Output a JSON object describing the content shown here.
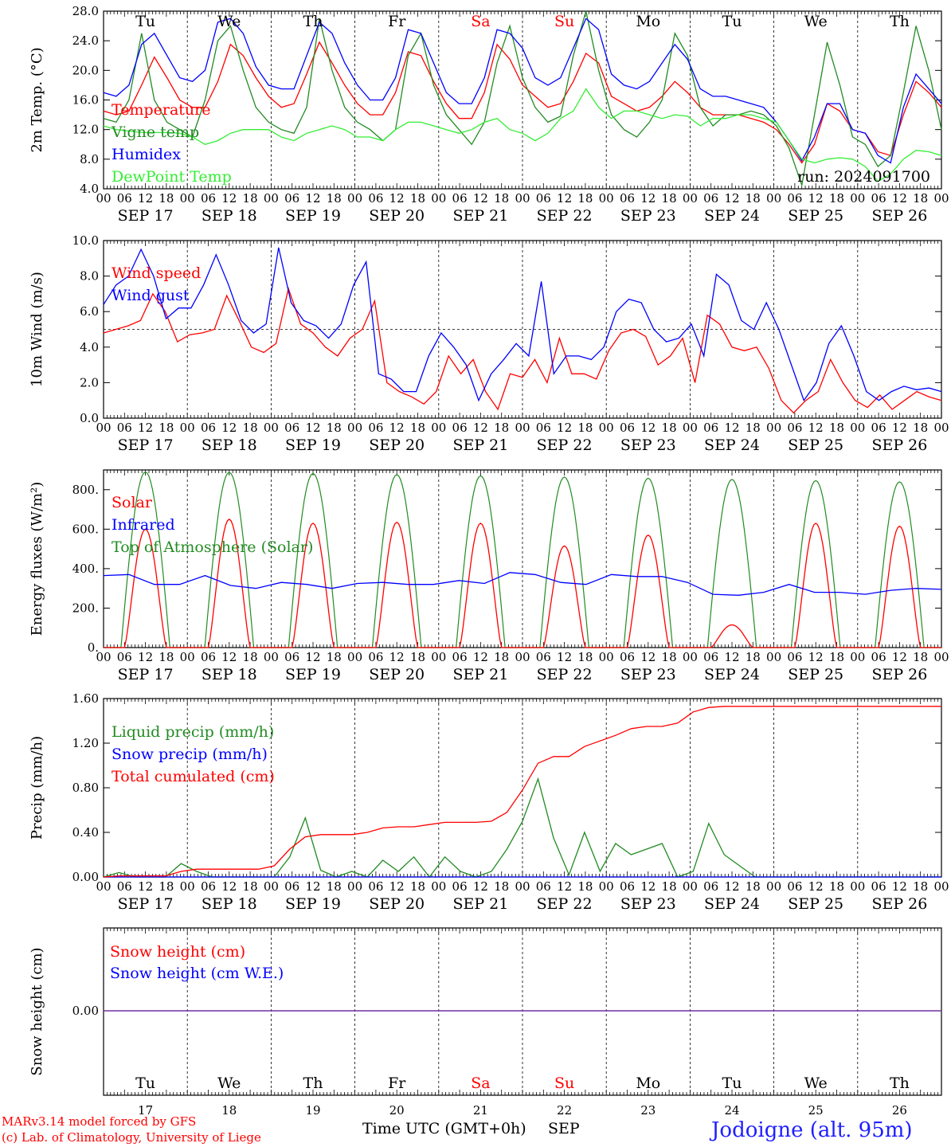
{
  "days": [
    "Tu",
    "We",
    "Th",
    "Fr",
    "Sa",
    "Su",
    "Mo",
    "Tu",
    "We",
    "Th"
  ],
  "day_colors": [
    "#000000",
    "#000000",
    "#000000",
    "#000000",
    "#ff0000",
    "#ff0000",
    "#000000",
    "#000000",
    "#000000",
    "#000000"
  ],
  "dates": [
    "SEP 17",
    "SEP 18",
    "SEP 19",
    "SEP 20",
    "SEP 21",
    "SEP 22",
    "SEP 23",
    "SEP 24",
    "SEP 25",
    "SEP 26"
  ],
  "day_numbers": [
    "17",
    "18",
    "19",
    "20",
    "21",
    "22",
    "23",
    "24",
    "25",
    "26"
  ],
  "hour_ticks": [
    "00",
    "06",
    "12",
    "18"
  ],
  "run": "run: 2024091700",
  "footer": {
    "model": "MARv3.14 model forced by GFS",
    "lab": "(c) Lab. of Climatology, University of Liege",
    "axis": "Time UTC (GMT+0h)",
    "month": "SEP",
    "location": "Jodoigne (alt. 95m)"
  },
  "chart_data": [
    {
      "type": "line",
      "ylabel": "2m Temp. (°C)",
      "ylim": [
        4,
        28
      ],
      "yticks": [
        "4.0",
        "8.0",
        "12.0",
        "16.0",
        "20.0",
        "24.0",
        "28.0"
      ],
      "x_hours_step": 6,
      "series": [
        {
          "name": "Temperature",
          "color": "#ff0000",
          "values": [
            14.5,
            14,
            14.5,
            18,
            21.8,
            19,
            16,
            15,
            15,
            18.5,
            23.5,
            22,
            19,
            16.5,
            15,
            15.5,
            19.5,
            23.8,
            21,
            18,
            15.5,
            14,
            14,
            17,
            22.5,
            22,
            18.5,
            15.5,
            13.5,
            13.5,
            17,
            23.5,
            21.5,
            18,
            16.5,
            15,
            15.5,
            18.5,
            22.3,
            21,
            16.5,
            15.5,
            14.5,
            15,
            16.5,
            18.5,
            17,
            15,
            14,
            14,
            14,
            13.5,
            13,
            12,
            10,
            7.5,
            10,
            15.5,
            14.5,
            12,
            11.5,
            9,
            8.5,
            14,
            18.5,
            17,
            15
          ]
        },
        {
          "name": "Vigne temp",
          "color": "#228b22",
          "values": [
            13.5,
            13,
            16,
            25,
            16,
            13,
            12,
            11,
            16,
            24,
            26,
            20,
            15,
            13,
            12,
            11.5,
            15,
            27,
            20,
            15,
            13,
            12,
            10.5,
            12,
            22,
            25,
            18,
            14,
            12,
            10,
            13,
            21,
            26,
            19,
            15,
            13,
            13.8,
            22,
            28,
            20,
            14,
            12,
            11,
            13,
            16,
            25,
            22,
            15,
            12.5,
            14,
            14,
            14.5,
            14,
            12.5,
            9.5,
            4.5,
            14,
            23.8,
            18,
            11,
            10,
            7,
            8.5,
            17,
            26,
            20,
            12
          ]
        },
        {
          "name": "Humidex",
          "color": "#0000ff",
          "values": [
            17,
            16.5,
            18,
            23.5,
            25,
            22,
            19,
            18.5,
            20,
            26.5,
            27,
            25,
            20.5,
            18,
            17.5,
            17.5,
            22,
            26.5,
            25,
            21,
            18,
            16,
            16,
            19,
            25.5,
            25,
            21,
            17,
            15.5,
            15.5,
            19,
            25.5,
            25,
            23,
            19,
            18,
            19,
            23,
            27,
            25.5,
            19.5,
            18,
            17.5,
            18.5,
            21,
            23.5,
            21.5,
            17.5,
            16.5,
            16.5,
            16,
            15.5,
            15,
            13,
            10.5,
            7.8,
            11,
            15.5,
            15.5,
            12,
            11.5,
            8.5,
            7.5,
            15,
            19.5,
            17.5,
            15.5
          ]
        },
        {
          "name": "DewPoint Temp",
          "color": "#33ee33",
          "values": [
            12.5,
            12,
            11.8,
            11.6,
            11.6,
            11.6,
            11.5,
            11,
            10,
            10.5,
            11.5,
            12,
            12,
            12,
            11,
            10.5,
            11.5,
            12,
            12.5,
            12,
            11,
            11,
            10.5,
            12,
            13,
            13,
            12.5,
            12,
            11.5,
            12,
            13,
            13.5,
            12,
            11.5,
            10.5,
            11.5,
            13.5,
            14.5,
            17.5,
            15,
            13.5,
            14.5,
            14.5,
            14,
            13.5,
            14,
            13.8,
            12.5,
            13.5,
            13.5,
            14,
            14,
            13.5,
            13,
            10.5,
            8,
            7.5,
            8,
            8.2,
            8,
            7,
            5,
            6,
            8,
            9.2,
            9,
            8.5
          ]
        }
      ],
      "annotation": "run: 2024091700"
    },
    {
      "type": "line",
      "ylabel": "10m Wind (m/s)",
      "ylim": [
        0,
        10
      ],
      "yticks": [
        "0.0",
        "2.0",
        "4.0",
        "6.0",
        "8.0",
        "10.0"
      ],
      "reference_line": 5.0,
      "series": [
        {
          "name": "Wind speed",
          "color": "#ff0000",
          "values": [
            4.8,
            5,
            5.2,
            5.5,
            7,
            6,
            4.3,
            4.7,
            4.8,
            5,
            6.9,
            5.5,
            4,
            3.7,
            4.2,
            7.3,
            5.3,
            4.8,
            4,
            3.5,
            4.5,
            5,
            6.6,
            2,
            1.5,
            1.2,
            0.8,
            1.5,
            3.5,
            2.5,
            3.3,
            1.5,
            0.5,
            2.5,
            2.3,
            3.3,
            2,
            4.5,
            2.5,
            2.5,
            2.2,
            3.8,
            4.8,
            5,
            4.6,
            3,
            3.5,
            4.5,
            2,
            5.8,
            5.3,
            4,
            3.8,
            4,
            2.8,
            1,
            0.3,
            1,
            1.5,
            3.3,
            2,
            1,
            0.6,
            1.3,
            0.5,
            1,
            1.5,
            1.2,
            1
          ]
        },
        {
          "name": "Wind gust",
          "color": "#0000ff",
          "values": [
            6.4,
            7.5,
            8,
            9.5,
            8,
            5.6,
            6.2,
            6.2,
            7.5,
            9.2,
            7.5,
            5.5,
            4.8,
            5.3,
            9.6,
            6.5,
            5.5,
            5.2,
            4.5,
            5.3,
            7.5,
            8.8,
            2.5,
            2.2,
            1.5,
            1.5,
            3.5,
            4.8,
            4,
            3,
            1,
            2.5,
            3.3,
            4.2,
            3.5,
            7.7,
            2.5,
            3.5,
            3.5,
            3.3,
            4,
            6,
            6.7,
            6.5,
            5,
            4.3,
            4.5,
            5.3,
            3.5,
            8.1,
            7.5,
            5.5,
            5,
            6.5,
            5,
            3,
            1,
            2,
            4.2,
            5.2,
            3.5,
            1.5,
            1,
            1.5,
            1.8,
            1.6,
            1.7,
            1.5
          ]
        }
      ]
    },
    {
      "type": "line",
      "ylabel": "Energy fluxes (W/m²)",
      "ylim": [
        0,
        900
      ],
      "yticks": [
        "0.",
        "200.",
        "400.",
        "600.",
        "800."
      ],
      "series": [
        {
          "name": "Solar",
          "color": "#ff0000",
          "peaks": [
            600,
            650,
            630,
            635,
            630,
            515,
            570,
            115,
            630,
            615
          ]
        },
        {
          "name": "Infrared",
          "color": "#0000ff",
          "values": [
            365,
            370,
            320,
            320,
            365,
            315,
            300,
            330,
            320,
            300,
            325,
            330,
            320,
            320,
            340,
            325,
            380,
            370,
            330,
            320,
            370,
            360,
            360,
            330,
            270,
            265,
            280,
            320,
            280,
            280,
            270,
            290,
            300,
            295
          ]
        },
        {
          "name": "Top of Atmosphere (Solar)",
          "color": "#228b22",
          "peaks": [
            890,
            888,
            882,
            876,
            870,
            864,
            858,
            852,
            846,
            840
          ]
        }
      ]
    },
    {
      "type": "line",
      "ylabel": "Precip (mm/h)",
      "ylim": [
        0,
        1.6
      ],
      "yticks": [
        "0.00",
        "0.40",
        "0.80",
        "1.20",
        "1.60"
      ],
      "series": [
        {
          "name": "Liquid precip (mm/h)",
          "color": "#228b22",
          "values": [
            0,
            0.04,
            0,
            0,
            0,
            0.12,
            0.05,
            0,
            0,
            0,
            0,
            0,
            0.18,
            0.53,
            0.06,
            0,
            0.05,
            0,
            0.15,
            0.05,
            0.18,
            0,
            0.18,
            0.05,
            0,
            0.05,
            0.25,
            0.5,
            0.88,
            0.35,
            0.02,
            0.4,
            0.05,
            0.3,
            0.2,
            0.25,
            0.3,
            0,
            0.05,
            0.48,
            0.2,
            0.1,
            0,
            0,
            0,
            0,
            0,
            0,
            0,
            0,
            0,
            0,
            0,
            0,
            0
          ]
        },
        {
          "name": "Snow precip (mm/h)",
          "color": "#0000ff",
          "values": [
            0,
            0,
            0,
            0,
            0,
            0,
            0,
            0,
            0,
            0,
            0,
            0,
            0,
            0,
            0,
            0,
            0,
            0,
            0,
            0,
            0,
            0,
            0,
            0,
            0,
            0,
            0,
            0,
            0,
            0,
            0,
            0,
            0,
            0,
            0,
            0,
            0,
            0,
            0,
            0,
            0,
            0,
            0,
            0,
            0,
            0,
            0,
            0,
            0,
            0,
            0,
            0,
            0,
            0,
            0
          ]
        },
        {
          "name": "Total cumulated (cm)",
          "color": "#ff0000",
          "values": [
            0,
            0.01,
            0.01,
            0.01,
            0.01,
            0.05,
            0.07,
            0.07,
            0.07,
            0.07,
            0.07,
            0.1,
            0.25,
            0.36,
            0.38,
            0.38,
            0.38,
            0.4,
            0.44,
            0.45,
            0.45,
            0.47,
            0.49,
            0.49,
            0.49,
            0.5,
            0.58,
            0.78,
            1.02,
            1.08,
            1.08,
            1.17,
            1.22,
            1.27,
            1.33,
            1.35,
            1.35,
            1.38,
            1.48,
            1.52,
            1.53,
            1.53,
            1.53,
            1.53,
            1.53,
            1.53,
            1.53,
            1.53,
            1.53,
            1.53,
            1.53,
            1.53,
            1.53,
            1.53,
            1.53
          ]
        }
      ]
    },
    {
      "type": "line",
      "ylabel": "Snow height (cm)",
      "yticks": [
        "0.00"
      ],
      "series": [
        {
          "name": "Snow height (cm)",
          "color": "#ff0000",
          "values": [
            0,
            0
          ]
        },
        {
          "name": "Snow height (cm W.E.)",
          "color": "#0000ff",
          "values": [
            0,
            0
          ]
        }
      ]
    }
  ]
}
